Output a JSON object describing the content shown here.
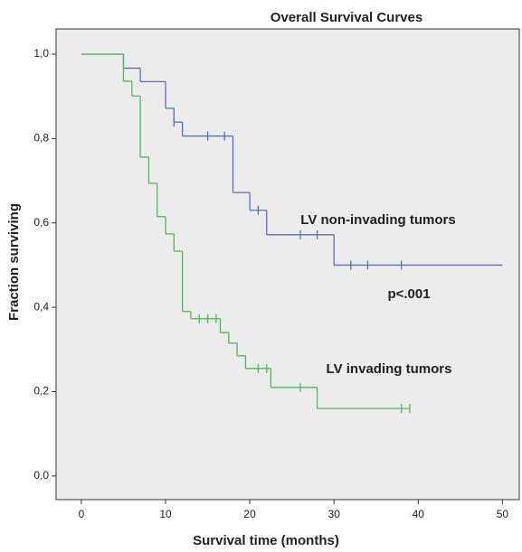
{
  "chart_data": {
    "type": "survival-step",
    "title": "Overall Survival Curves",
    "x_label": "Survival time (months)",
    "y_label": "Fraction surviving",
    "xlim": [
      -3,
      52
    ],
    "ylim": [
      -0.056,
      1.06
    ],
    "xticks": [
      0,
      10,
      20,
      30,
      40,
      50
    ],
    "yticks": [
      {
        "value": 0,
        "label": "0,0"
      },
      {
        "value": 0.2,
        "label": "0,2"
      },
      {
        "value": 0.4,
        "label": "0,4"
      },
      {
        "value": 0.6,
        "label": "0,6"
      },
      {
        "value": 0.8,
        "label": "0,8"
      },
      {
        "value": 1,
        "label": "1,0"
      }
    ],
    "annotations": [
      "LV non-invading tumors",
      "p<.001",
      "LV invading tumors"
    ],
    "series": [
      {
        "name": "LV non-invading tumors",
        "color": "#5a6fb8",
        "x": [
          0,
          5,
          7,
          10,
          11,
          12,
          18,
          20,
          22,
          30,
          50
        ],
        "values": [
          1.0,
          0.967,
          0.935,
          0.872,
          0.839,
          0.806,
          0.672,
          0.63,
          0.572,
          0.5,
          0.5
        ],
        "censor_x": [
          11,
          15,
          17,
          21,
          26,
          28,
          32,
          34,
          38
        ],
        "censor_y": [
          0.839,
          0.806,
          0.806,
          0.63,
          0.572,
          0.572,
          0.5,
          0.5,
          0.5
        ]
      },
      {
        "name": "LV invading tumors",
        "color": "#4cbb5b",
        "x": [
          0,
          5,
          6,
          7,
          8,
          9,
          10,
          11,
          12,
          13,
          16.5,
          17.5,
          18.5,
          19.5,
          22.5,
          28,
          39
        ],
        "values": [
          1.0,
          0.936,
          0.901,
          0.756,
          0.694,
          0.615,
          0.574,
          0.533,
          0.39,
          0.373,
          0.34,
          0.315,
          0.285,
          0.255,
          0.21,
          0.16,
          0.16
        ],
        "censor_x": [
          14,
          15,
          16,
          21,
          22,
          26,
          38,
          39
        ],
        "censor_y": [
          0.373,
          0.373,
          0.373,
          0.255,
          0.255,
          0.21,
          0.16,
          0.16
        ]
      }
    ]
  }
}
